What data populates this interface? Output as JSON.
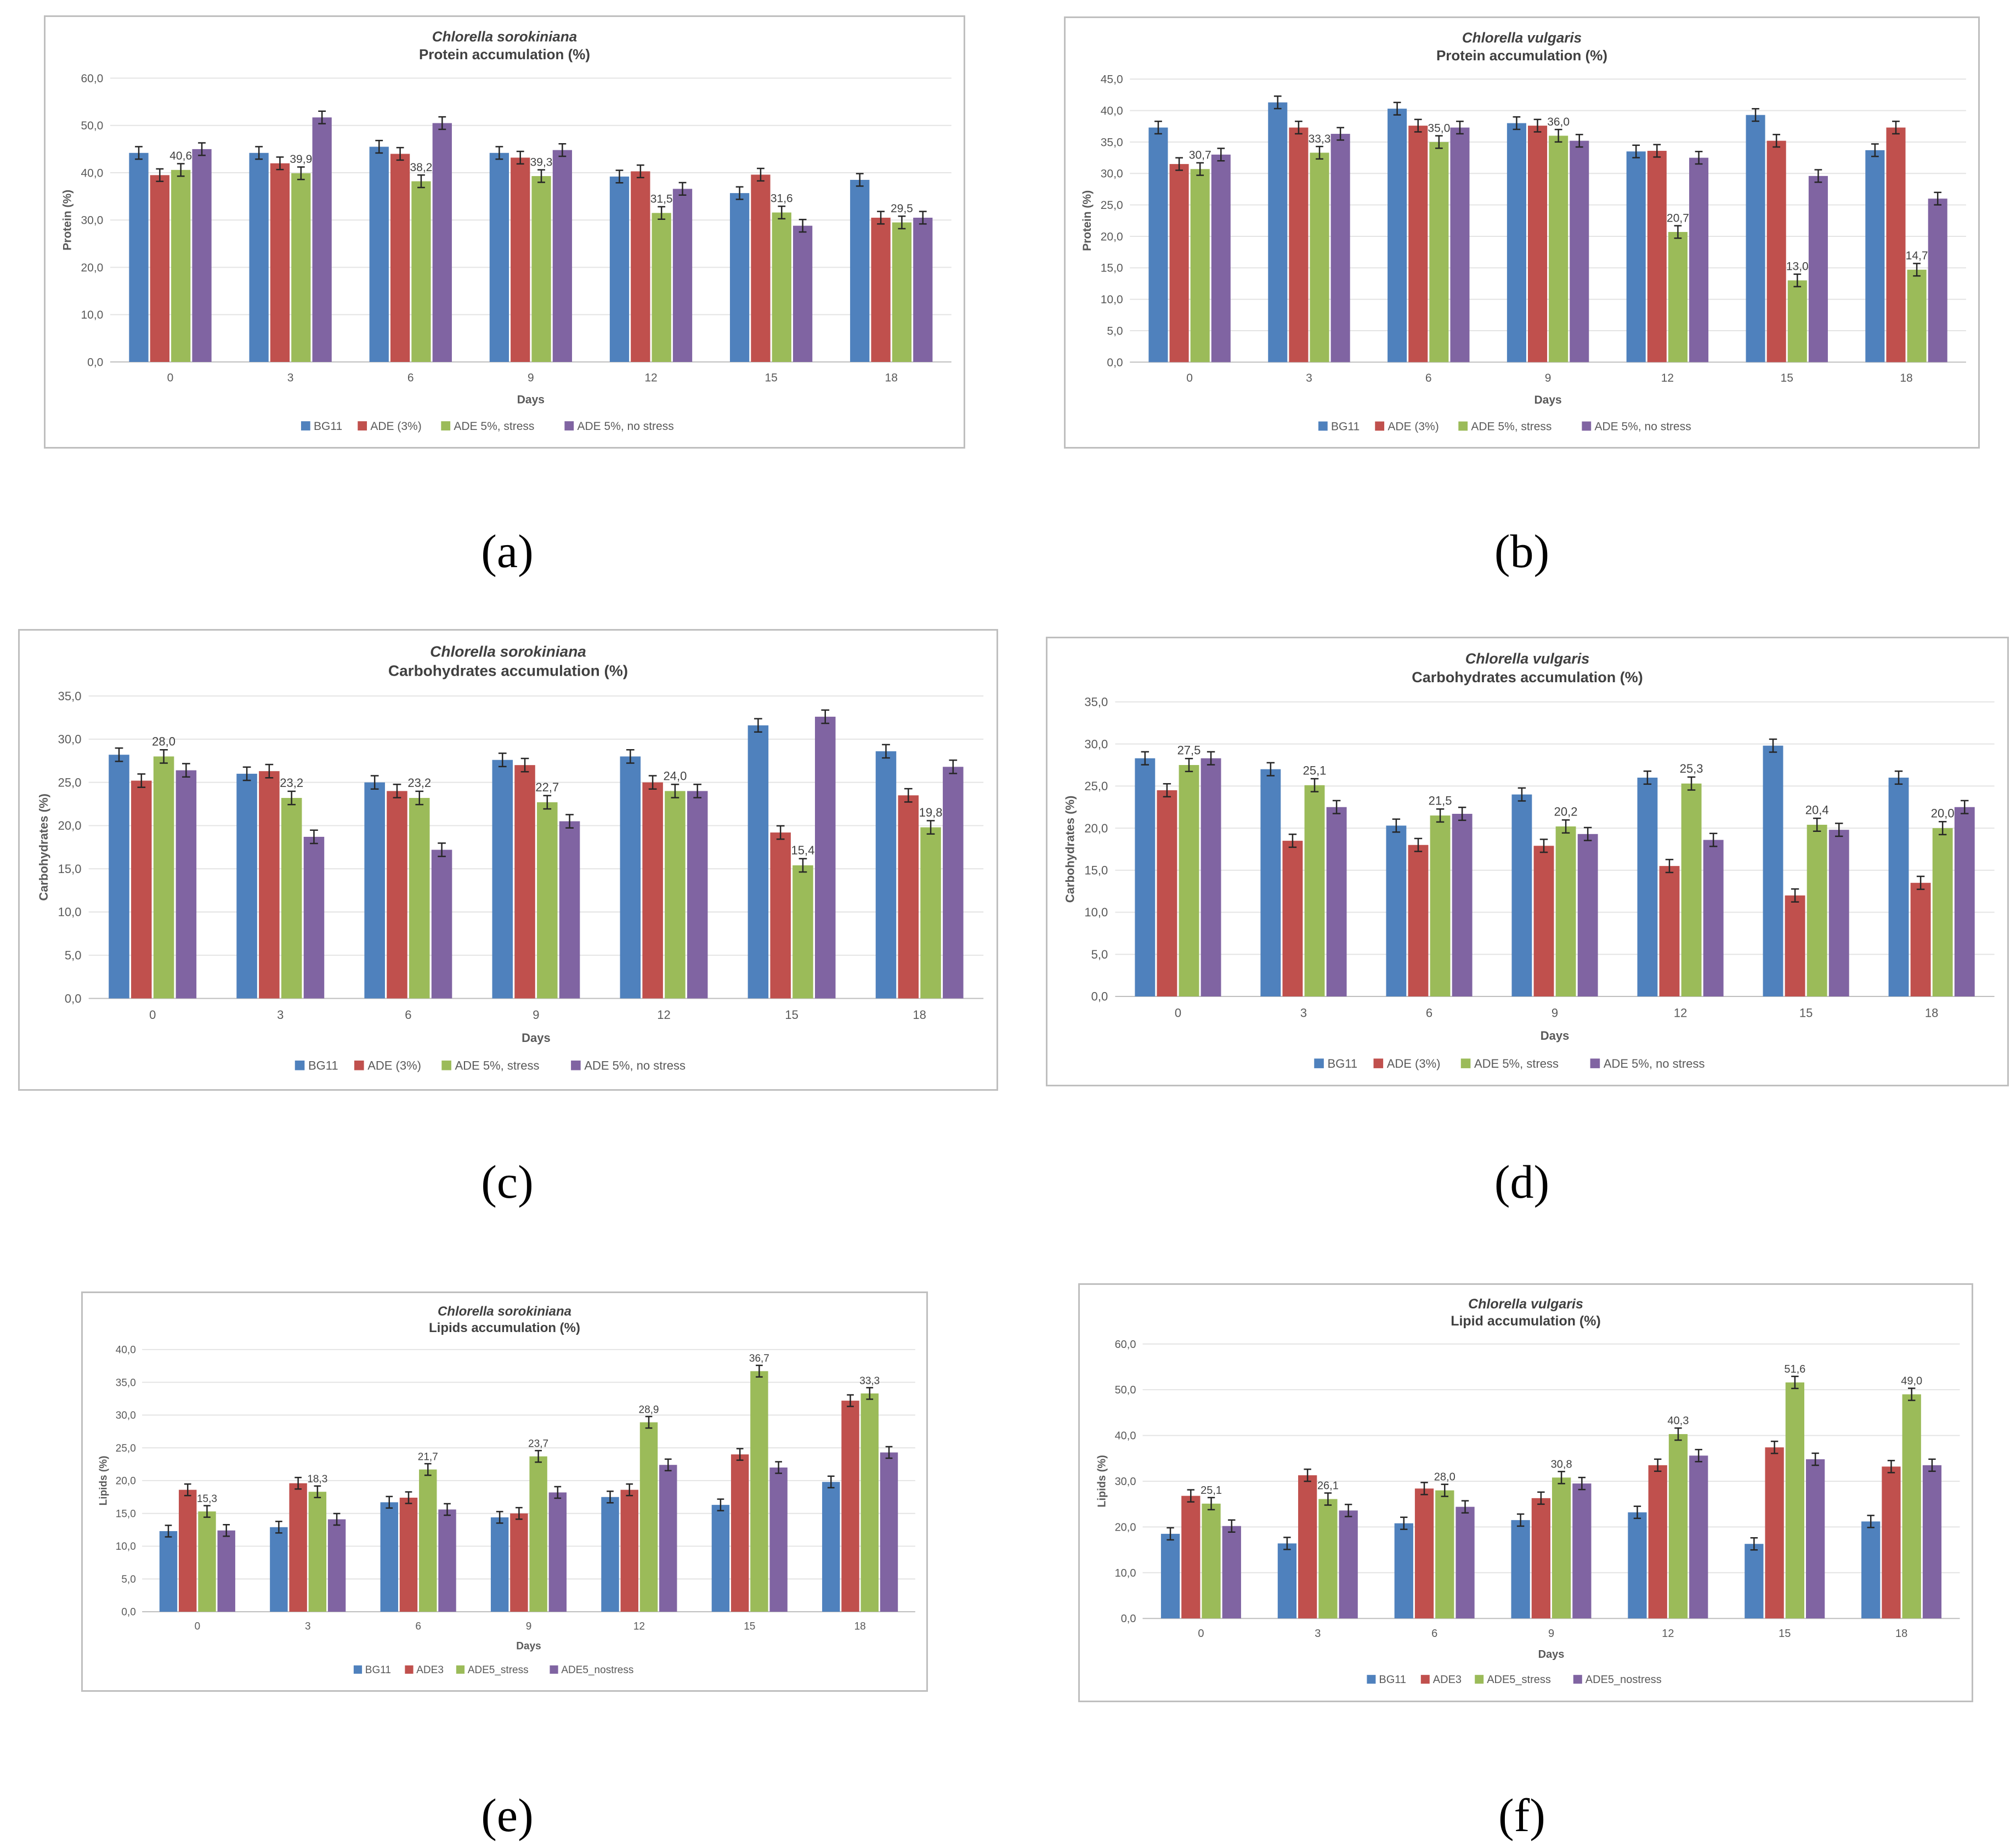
{
  "panel_labels": [
    "(a)",
    "(b)",
    "(c)",
    "(d)",
    "(e)",
    "(f)"
  ],
  "colors": {
    "BG11": "#4f81bd",
    "ADE3": "#c0504d",
    "ADE5_stress": "#9bbb59",
    "ADE5_nostress": "#8064a2"
  },
  "chart_data": [
    {
      "type": "bar",
      "title": "Chlorella sorokiniana",
      "subtitle": "Protein accumulation (%)",
      "xlabel": "Days",
      "ylabel": "Protein (%)",
      "ylim": [
        0,
        60
      ],
      "ytick_step": 10,
      "categories": [
        "0",
        "3",
        "6",
        "9",
        "12",
        "15",
        "18"
      ],
      "series": [
        {
          "name": "BG11",
          "values": [
            44.2,
            44.2,
            45.5,
            44.2,
            39.2,
            35.7,
            38.5
          ]
        },
        {
          "name": "ADE (3%)",
          "values": [
            39.5,
            42.0,
            44.0,
            43.2,
            40.3,
            39.6,
            30.5
          ]
        },
        {
          "name": "ADE 5%, stress",
          "values": [
            40.6,
            39.9,
            38.2,
            39.3,
            31.5,
            31.6,
            29.5
          ]
        },
        {
          "name": "ADE 5%, no stress",
          "values": [
            45.0,
            51.7,
            50.5,
            44.8,
            36.6,
            28.8,
            30.5
          ]
        }
      ],
      "data_labels": [
        "40,6",
        "39,9",
        "38,2",
        "39,3",
        "31,5",
        "31,6",
        "29,5"
      ],
      "grid": true,
      "legend": "bottom"
    },
    {
      "type": "bar",
      "title": "Chlorella vulgaris",
      "subtitle": "Protein accumulation (%)",
      "xlabel": "Days",
      "ylabel": "Protein (%)",
      "ylim": [
        0,
        45
      ],
      "ytick_step": 5,
      "categories": [
        "0",
        "3",
        "6",
        "9",
        "12",
        "15",
        "18"
      ],
      "series": [
        {
          "name": "BG11",
          "values": [
            37.3,
            41.3,
            40.3,
            38.0,
            33.5,
            39.3,
            33.7
          ]
        },
        {
          "name": "ADE (3%)",
          "values": [
            31.5,
            37.3,
            37.6,
            37.6,
            33.6,
            35.2,
            37.3
          ]
        },
        {
          "name": "ADE 5%, stress",
          "values": [
            30.7,
            33.3,
            35.0,
            36.0,
            20.7,
            13.0,
            14.7
          ]
        },
        {
          "name": "ADE 5%, no stress",
          "values": [
            33.0,
            36.3,
            37.3,
            35.2,
            32.5,
            29.6,
            26.0
          ]
        }
      ],
      "data_labels": [
        "30,7",
        "33,3",
        "35,0",
        "36,0",
        "20,7",
        "13,0",
        "14,7"
      ],
      "grid": true,
      "legend": "bottom"
    },
    {
      "type": "bar",
      "title": "Chlorella sorokiniana",
      "subtitle": "Carbohydrates accumulation (%)",
      "xlabel": "Days",
      "ylabel": "Carbohydrates (%)",
      "ylim": [
        0,
        35
      ],
      "ytick_step": 5,
      "categories": [
        "0",
        "3",
        "6",
        "9",
        "12",
        "15",
        "18"
      ],
      "series": [
        {
          "name": "BG11",
          "values": [
            28.2,
            26.0,
            25.0,
            27.6,
            28.0,
            31.6,
            28.6
          ]
        },
        {
          "name": "ADE (3%)",
          "values": [
            25.2,
            26.3,
            24.0,
            27.0,
            25.0,
            19.2,
            23.5
          ]
        },
        {
          "name": "ADE 5%, stress",
          "values": [
            28.0,
            23.2,
            23.2,
            22.7,
            24.0,
            15.4,
            19.8
          ]
        },
        {
          "name": "ADE 5%, no stress",
          "values": [
            26.4,
            18.7,
            17.2,
            20.5,
            24.0,
            32.6,
            26.8
          ]
        }
      ],
      "data_labels": [
        "28,0",
        "23,2",
        "23,2",
        "22,7",
        "24,0",
        "15,4",
        "19,8"
      ],
      "grid": true,
      "legend": "bottom"
    },
    {
      "type": "bar",
      "title": "Chlorella vulgaris",
      "subtitle": "Carbohydrates accumulation (%)",
      "xlabel": "Days",
      "ylabel": "Carbohydrates (%)",
      "ylim": [
        0,
        35
      ],
      "ytick_step": 5,
      "categories": [
        "0",
        "3",
        "6",
        "9",
        "12",
        "15",
        "18"
      ],
      "series": [
        {
          "name": "BG11",
          "values": [
            28.3,
            27.0,
            20.3,
            24.0,
            26.0,
            29.8,
            26.0
          ]
        },
        {
          "name": "ADE (3%)",
          "values": [
            24.5,
            18.5,
            18.0,
            17.9,
            15.5,
            12.0,
            13.5
          ]
        },
        {
          "name": "ADE 5%, stress",
          "values": [
            27.5,
            25.1,
            21.5,
            20.2,
            25.3,
            20.4,
            20.0
          ]
        },
        {
          "name": "ADE 5%, no stress",
          "values": [
            28.3,
            22.5,
            21.7,
            19.3,
            18.6,
            19.8,
            22.5
          ]
        }
      ],
      "data_labels": [
        "27,5",
        "25,1",
        "21,5",
        "20,2",
        "25,3",
        "20,4",
        "20,0"
      ],
      "grid": true,
      "legend": "bottom"
    },
    {
      "type": "bar",
      "title": "Chlorella sorokiniana",
      "subtitle": "Lipids accumulation (%)",
      "xlabel": "Days",
      "ylabel": "Lipids (%)",
      "ylim": [
        0,
        40
      ],
      "ytick_step": 5,
      "categories": [
        "0",
        "3",
        "6",
        "9",
        "12",
        "15",
        "18"
      ],
      "series": [
        {
          "name": "BG11",
          "values": [
            12.3,
            12.9,
            16.7,
            14.4,
            17.5,
            16.3,
            19.8
          ]
        },
        {
          "name": "ADE3",
          "values": [
            18.6,
            19.6,
            17.4,
            15.0,
            18.6,
            24.0,
            32.2
          ]
        },
        {
          "name": "ADE5_stress",
          "values": [
            15.3,
            18.3,
            21.7,
            23.7,
            28.9,
            36.7,
            33.3
          ]
        },
        {
          "name": "ADE5_nostress",
          "values": [
            12.4,
            14.1,
            15.6,
            18.2,
            22.4,
            22.0,
            24.3
          ]
        }
      ],
      "data_labels": [
        "15,3",
        "18,3",
        "21,7",
        "23,7",
        "28,9",
        "36,7",
        "33,3"
      ],
      "grid": true,
      "legend": "bottom"
    },
    {
      "type": "bar",
      "title": "Chlorella vulgaris",
      "subtitle": "Lipid accumulation (%)",
      "xlabel": "Days",
      "ylabel": "Lipids (%)",
      "ylim": [
        0,
        60
      ],
      "ytick_step": 10,
      "categories": [
        "0",
        "3",
        "6",
        "9",
        "12",
        "15",
        "18"
      ],
      "series": [
        {
          "name": "BG11",
          "values": [
            18.5,
            16.4,
            20.8,
            21.5,
            23.2,
            16.3,
            21.2
          ]
        },
        {
          "name": "ADE3",
          "values": [
            26.8,
            31.3,
            28.4,
            26.3,
            33.5,
            37.4,
            33.2
          ]
        },
        {
          "name": "ADE5_stress",
          "values": [
            25.1,
            26.1,
            28.0,
            30.8,
            40.3,
            51.6,
            49.0
          ]
        },
        {
          "name": "ADE5_nostress",
          "values": [
            20.2,
            23.6,
            24.4,
            29.5,
            35.6,
            34.8,
            33.5
          ]
        }
      ],
      "data_labels": [
        "25,1",
        "26,1",
        "28,0",
        "30,8",
        "40,3",
        "51,6",
        "49,0"
      ],
      "grid": true,
      "legend": "bottom"
    }
  ]
}
